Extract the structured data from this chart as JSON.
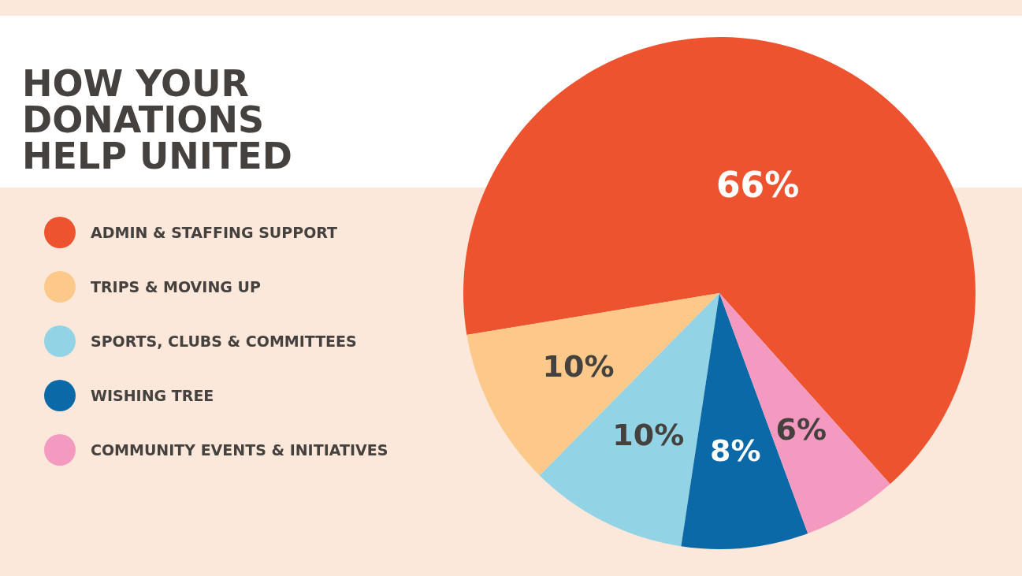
{
  "chart_data": {
    "type": "pie",
    "title": "HOW YOUR DONATIONS HELP UNITED",
    "categories": [
      "ADMIN & STAFFING SUPPORT",
      "TRIPS & MOVING UP",
      "SPORTS, CLUBS & COMMITTEES",
      "WISHING TREE",
      "COMMUNITY EVENTS & INITIATIVES"
    ],
    "values": [
      66,
      10,
      10,
      8,
      6
    ],
    "value_labels": [
      "66%",
      "10%",
      "10%",
      "8%",
      "6%"
    ],
    "colors": [
      "#ee532f",
      "#fdc98a",
      "#93d3e6",
      "#0b69a8",
      "#f49ac0"
    ],
    "legend": "left"
  }
}
